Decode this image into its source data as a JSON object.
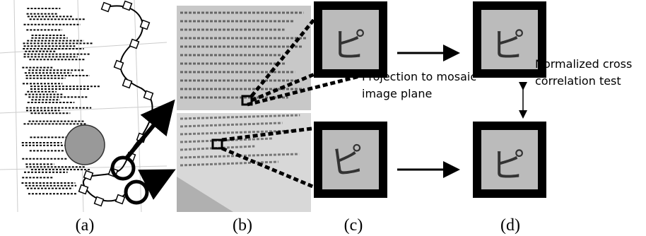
{
  "panels": [
    {
      "label": "(a)"
    },
    {
      "label": "(b)"
    },
    {
      "label": "(c)"
    },
    {
      "label": "(d)"
    }
  ],
  "annotations": {
    "projection": [
      "Projection to mosaic",
      "image plane"
    ],
    "ncc": [
      "Normalized cross",
      "correlation test"
    ]
  },
  "patch_glyph": "ピ"
}
